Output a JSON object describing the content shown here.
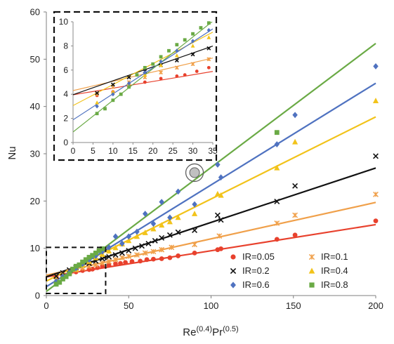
{
  "chart_data": {
    "type": "scatter",
    "xlabel": {
      "base": "Re",
      "sup1": "(0.4)",
      "mid": "Pr",
      "sup2": "(0.5)"
    },
    "ylabel": "Nu",
    "xlim": [
      0,
      200
    ],
    "ylim": [
      0,
      60
    ],
    "x_ticks": [
      0,
      50,
      100,
      150,
      200
    ],
    "y_ticks": [
      0,
      10,
      20,
      30,
      40,
      50,
      60
    ],
    "grid": false,
    "legend_placement": "bottom-right",
    "series": [
      {
        "name": "IR=0.05",
        "marker": "circle",
        "color": "#e8412d",
        "fit": {
          "slope": 0.0553,
          "intercept": 3.95
        },
        "points": [
          [
            6,
            3.9
          ],
          [
            10,
            4.2
          ],
          [
            14,
            4.6
          ],
          [
            18,
            5.0
          ],
          [
            22,
            5.3
          ],
          [
            26,
            5.5
          ],
          [
            28,
            5.6
          ],
          [
            31,
            5.9
          ],
          [
            34,
            6.2
          ],
          [
            38,
            6.4
          ],
          [
            42,
            6.7
          ],
          [
            45,
            6.8
          ],
          [
            48,
            7.0
          ],
          [
            52,
            7.2
          ],
          [
            57,
            7.3
          ],
          [
            61,
            7.6
          ],
          [
            65,
            7.7
          ],
          [
            70,
            7.8
          ],
          [
            75,
            8.0
          ],
          [
            80,
            8.4
          ],
          [
            90,
            9.0
          ],
          [
            104,
            9.7
          ],
          [
            106,
            9.9
          ],
          [
            140,
            11.9
          ],
          [
            151,
            12.8
          ],
          [
            200,
            15.8
          ]
        ]
      },
      {
        "name": "IR=0.1",
        "marker": "asterisk",
        "color": "#f0a04a",
        "fit": {
          "slope": 0.077,
          "intercept": 4.3
        },
        "points": [
          [
            6,
            4.0
          ],
          [
            10,
            4.6
          ],
          [
            14,
            5.0
          ],
          [
            18,
            5.4
          ],
          [
            22,
            5.8
          ],
          [
            26,
            6.2
          ],
          [
            30,
            6.5
          ],
          [
            34,
            6.9
          ],
          [
            38,
            7.2
          ],
          [
            42,
            7.6
          ],
          [
            46,
            8.0
          ],
          [
            50,
            8.3
          ],
          [
            55,
            8.6
          ],
          [
            60,
            9.0
          ],
          [
            65,
            9.3
          ],
          [
            70,
            9.7
          ],
          [
            76,
            10.2
          ],
          [
            90,
            10.8
          ],
          [
            105,
            12.6
          ],
          [
            140,
            15.3
          ],
          [
            151,
            17.0
          ],
          [
            200,
            21.4
          ]
        ]
      },
      {
        "name": "IR=0.2",
        "marker": "cross",
        "color": "#111111",
        "fit": {
          "slope": 0.1151,
          "intercept": 3.96
        },
        "points": [
          [
            6,
            4.1
          ],
          [
            10,
            4.8
          ],
          [
            14,
            5.4
          ],
          [
            18,
            5.9
          ],
          [
            22,
            6.4
          ],
          [
            26,
            6.8
          ],
          [
            30,
            7.3
          ],
          [
            34,
            7.8
          ],
          [
            38,
            8.2
          ],
          [
            42,
            8.6
          ],
          [
            46,
            9.0
          ],
          [
            50,
            9.5
          ],
          [
            54,
            10.0
          ],
          [
            58,
            10.5
          ],
          [
            62,
            11.0
          ],
          [
            66,
            11.6
          ],
          [
            70,
            12.2
          ],
          [
            75,
            12.8
          ],
          [
            80,
            13.4
          ],
          [
            90,
            13.8
          ],
          [
            104,
            17.0
          ],
          [
            106,
            16.0
          ],
          [
            140,
            19.9
          ],
          [
            151,
            23.2
          ],
          [
            200,
            29.5
          ]
        ]
      },
      {
        "name": "IR=0.4",
        "marker": "triangle",
        "color": "#f2c31a",
        "fit": {
          "slope": 0.1737,
          "intercept": 3.06
        },
        "points": [
          [
            6,
            3.3
          ],
          [
            10,
            4.2
          ],
          [
            14,
            4.9
          ],
          [
            18,
            5.6
          ],
          [
            22,
            6.4
          ],
          [
            26,
            7.2
          ],
          [
            30,
            8.0
          ],
          [
            34,
            8.7
          ],
          [
            38,
            9.4
          ],
          [
            42,
            10.1
          ],
          [
            46,
            10.9
          ],
          [
            50,
            11.6
          ],
          [
            55,
            12.5
          ],
          [
            60,
            13.3
          ],
          [
            65,
            14.1
          ],
          [
            70,
            14.9
          ],
          [
            75,
            15.6
          ],
          [
            80,
            16.5
          ],
          [
            90,
            17.3
          ],
          [
            104,
            21.5
          ],
          [
            106,
            21.2
          ],
          [
            140,
            27.0
          ],
          [
            151,
            32.5
          ],
          [
            200,
            41.2
          ]
        ]
      },
      {
        "name": "IR=0.6",
        "marker": "diamond",
        "color": "#4f72c0",
        "fit": {
          "slope": 0.2152,
          "intercept": 1.88
        },
        "points": [
          [
            6,
            3.0
          ],
          [
            10,
            4.0
          ],
          [
            14,
            4.9
          ],
          [
            18,
            5.8
          ],
          [
            22,
            6.7
          ],
          [
            26,
            7.6
          ],
          [
            30,
            8.4
          ],
          [
            34,
            9.3
          ],
          [
            38,
            10.2
          ],
          [
            42,
            12.5
          ],
          [
            46,
            11.0
          ],
          [
            50,
            12.5
          ],
          [
            55,
            13.5
          ],
          [
            60,
            17.3
          ],
          [
            65,
            15.2
          ],
          [
            70,
            19.8
          ],
          [
            75,
            16.5
          ],
          [
            80,
            22.0
          ],
          [
            90,
            19.3
          ],
          [
            104,
            27.7
          ],
          [
            106,
            25.0
          ],
          [
            140,
            32.0
          ],
          [
            151,
            38.2
          ],
          [
            200,
            48.5
          ]
        ]
      },
      {
        "name": "IR=0.8",
        "marker": "square",
        "color": "#6aaa45",
        "fit": {
          "slope": 0.2623,
          "intercept": 0.87
        },
        "points": [
          [
            6,
            2.4
          ],
          [
            8,
            2.8
          ],
          [
            10,
            3.5
          ],
          [
            12,
            4.0
          ],
          [
            14,
            4.6
          ],
          [
            16,
            5.6
          ],
          [
            18,
            6.2
          ],
          [
            20,
            6.5
          ],
          [
            22,
            7.1
          ],
          [
            24,
            7.6
          ],
          [
            26,
            8.1
          ],
          [
            28,
            8.5
          ],
          [
            30,
            9.0
          ],
          [
            32,
            9.5
          ],
          [
            34,
            9.9
          ],
          [
            90,
            26.0
          ],
          [
            140,
            34.5
          ]
        ]
      }
    ]
  }
}
